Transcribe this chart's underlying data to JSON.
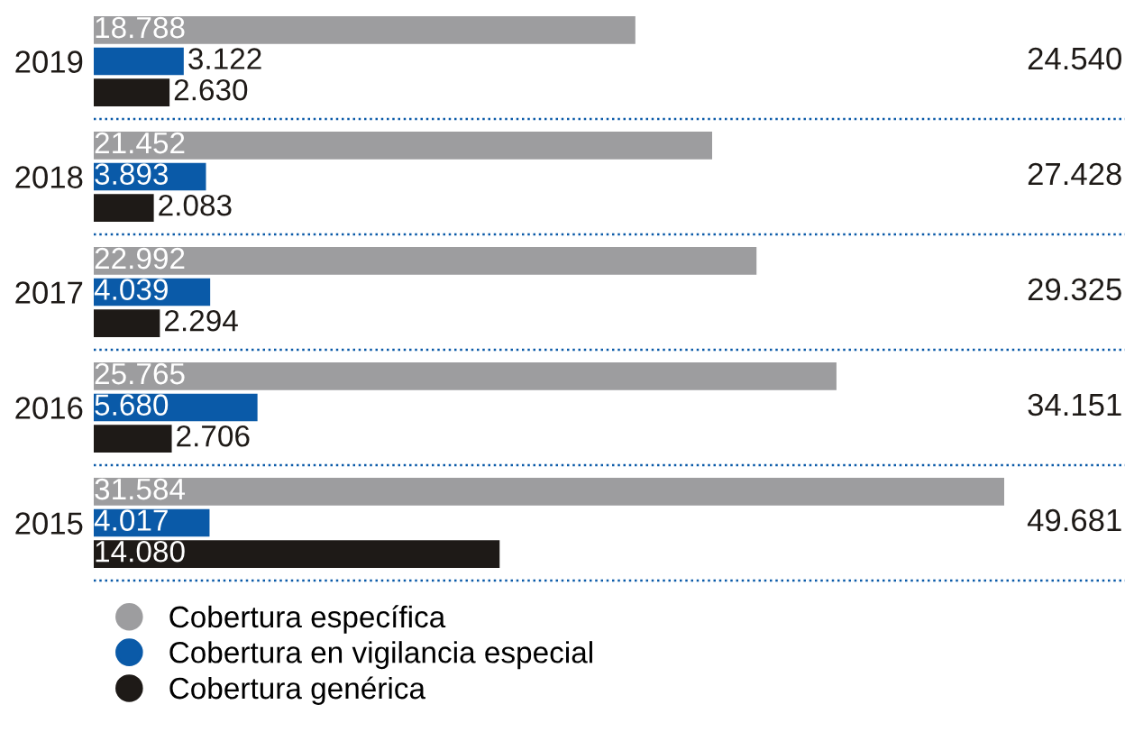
{
  "chart_data": {
    "type": "bar",
    "orientation": "horizontal",
    "categories": [
      "2019",
      "2018",
      "2017",
      "2016",
      "2015"
    ],
    "series": [
      {
        "name": "Cobertura específica",
        "color": "#9d9d9f",
        "values": [
          18788,
          21452,
          22992,
          25765,
          31584
        ],
        "value_labels": [
          "18.788",
          "21.452",
          "22.992",
          "25.765",
          "31.584"
        ]
      },
      {
        "name": "Cobertura en vigilancia especial",
        "color": "#0a5aa8",
        "values": [
          3122,
          3893,
          4039,
          5680,
          4017
        ],
        "value_labels": [
          "3.122",
          "3.893",
          "4.039",
          "5.680",
          "4.017"
        ]
      },
      {
        "name": "Cobertura genérica",
        "color": "#1e1a17",
        "values": [
          2630,
          2083,
          2294,
          2706,
          14080
        ],
        "value_labels": [
          "2.630",
          "2.083",
          "2.294",
          "2.706",
          "14.080"
        ]
      }
    ],
    "annotations": [
      "24.540",
      "27.428",
      "29.325",
      "34.151",
      "49.681"
    ],
    "grid": "y",
    "legend": "bottom left",
    "marker": "circle"
  }
}
